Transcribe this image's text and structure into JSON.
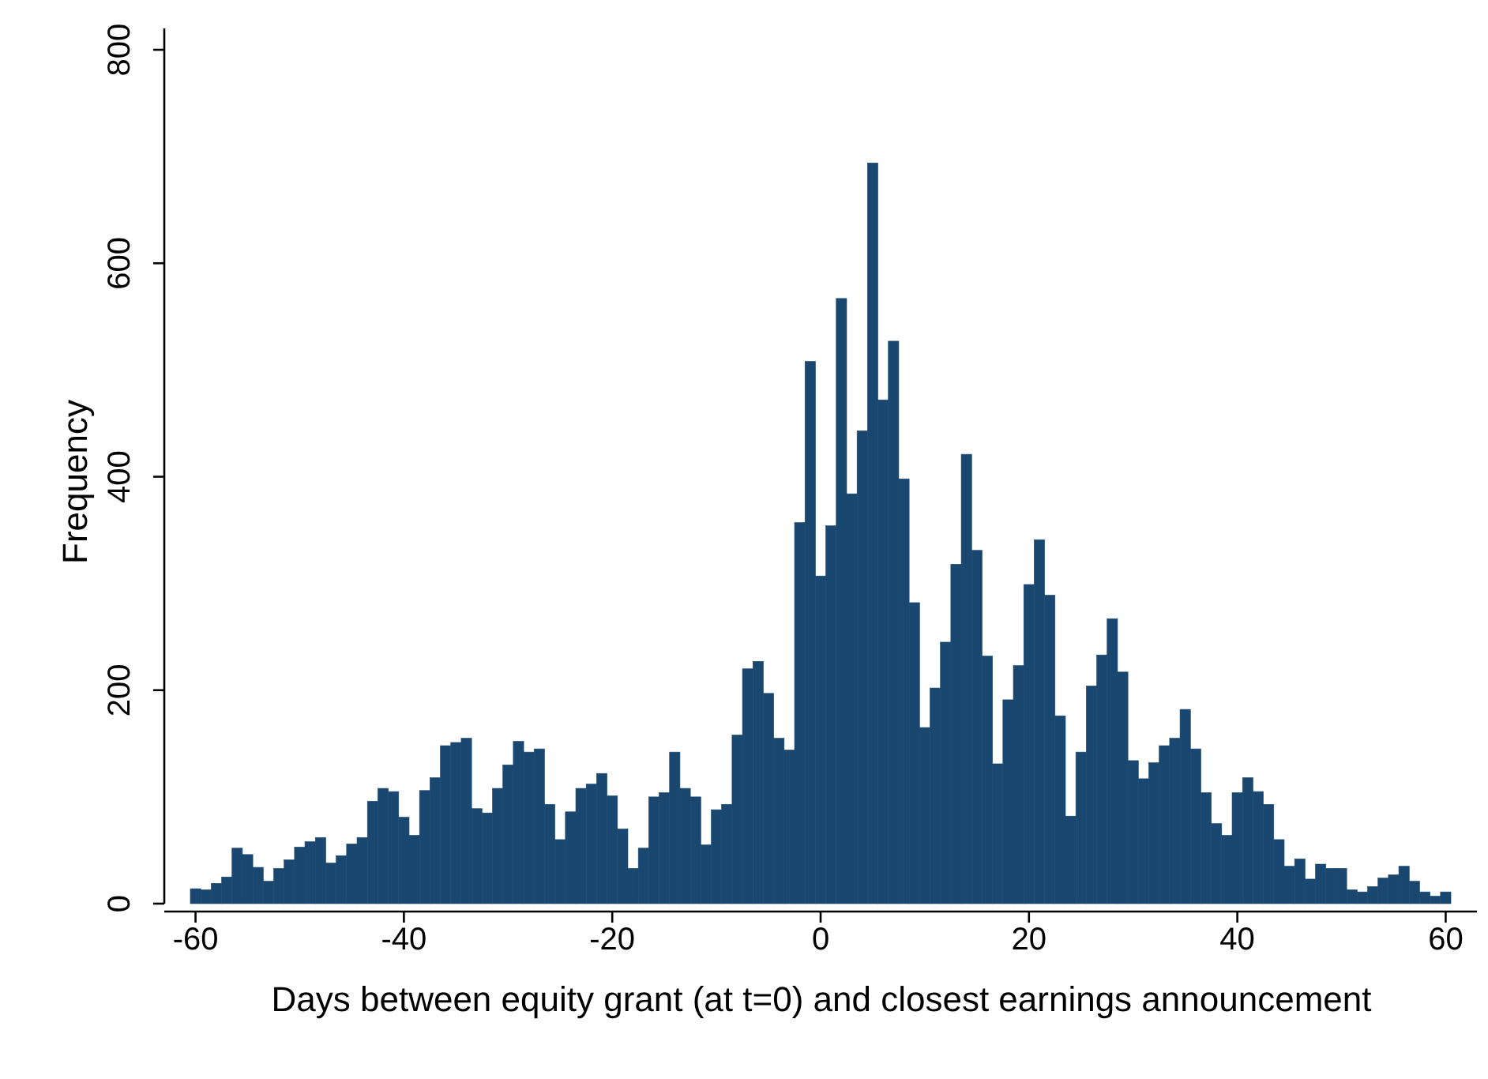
{
  "chart_data": {
    "type": "histogram",
    "xlabel": "Days between equity grant (at t=0) and closest earnings announcement",
    "ylabel": "Frequency",
    "color": "#1a476f",
    "bins": [
      -60.5,
      -59.5,
      -58.5,
      -57.5,
      -56.5,
      -55.5,
      -54.5,
      -53.5,
      -52.5,
      -51.5,
      -50.5,
      -49.5,
      -48.5,
      -47.5,
      -46.5,
      -45.5,
      -44.5,
      -43.5,
      -42.5,
      -41.5,
      -40.5,
      -39.5,
      -38.5,
      -37.5,
      -36.5,
      -35.5,
      -34.5,
      -33.5,
      -32.5,
      -31.5,
      -30.5,
      -29.5,
      -28.5,
      -27.5,
      -26.5,
      -25.5,
      -24.5,
      -23.5,
      -22.5,
      -21.5,
      -20.5,
      -19.5,
      -18.5,
      -17.5,
      -16.5,
      -15.5,
      -14.5,
      -13.5,
      -12.5,
      -11.5,
      -10.5,
      -9.5,
      -8.5,
      -7.5,
      -6.5,
      -5.5,
      -4.5,
      -3.5,
      -2.5,
      -1.5,
      -0.5,
      0.5,
      1.5,
      2.5,
      3.5,
      4.5,
      5.5,
      6.5,
      7.5,
      8.5,
      9.5,
      10.5,
      11.5,
      12.5,
      13.5,
      14.5,
      15.5,
      16.5,
      17.5,
      18.5,
      19.5,
      20.5,
      21.5,
      22.5,
      23.5,
      24.5,
      25.5,
      26.5,
      27.5,
      28.5,
      29.5,
      30.5,
      31.5,
      32.5,
      33.5,
      34.5,
      35.5,
      36.5,
      37.5,
      38.5,
      39.5,
      40.5,
      41.5,
      42.5,
      43.5,
      44.5,
      45.5,
      46.5,
      47.5,
      48.5,
      49.5,
      50.5,
      51.5,
      52.5,
      53.5,
      54.5,
      55.5,
      56.5,
      57.5,
      58.5,
      59.5,
      60.5
    ],
    "values": [
      14,
      13,
      19,
      25,
      52,
      46,
      34,
      21,
      33,
      41,
      53,
      58,
      62,
      38,
      45,
      56,
      62,
      96,
      108,
      105,
      81,
      64,
      106,
      118,
      148,
      151,
      155,
      89,
      85,
      108,
      130,
      152,
      142,
      145,
      93,
      60,
      86,
      108,
      112,
      122,
      101,
      70,
      33,
      52,
      100,
      104,
      142,
      108,
      100,
      55,
      88,
      93,
      158,
      220,
      227,
      197,
      155,
      144,
      357,
      508,
      307,
      354,
      567,
      384,
      443,
      694,
      472,
      527,
      398,
      282,
      165,
      202,
      245,
      318,
      421,
      331,
      232,
      131,
      191,
      223,
      299,
      341,
      289,
      176,
      82,
      142,
      204,
      233,
      267,
      217,
      134,
      117,
      132,
      148,
      155,
      182,
      145,
      104,
      75,
      64,
      104,
      118,
      105,
      93,
      60,
      35,
      42,
      23,
      37,
      33,
      33,
      13,
      11,
      16,
      24,
      27,
      35,
      21,
      11,
      7,
      11
    ],
    "xlim": [
      -63,
      63
    ],
    "ylim": [
      0,
      820
    ],
    "xticks": [
      -60,
      -40,
      -20,
      0,
      20,
      40,
      60
    ],
    "yticks": [
      0,
      200,
      400,
      600,
      800
    ],
    "grid": false
  }
}
